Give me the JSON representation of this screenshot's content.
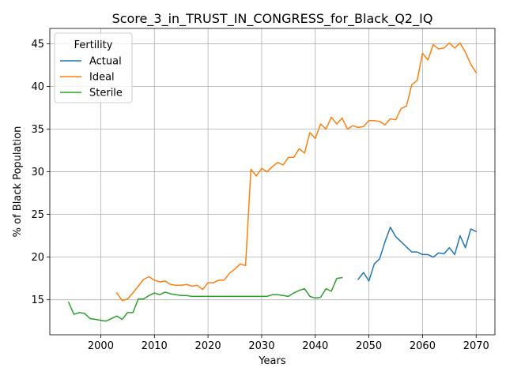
{
  "chart_data": {
    "type": "line",
    "title": "Score_3_in_TRUST_IN_CONGRESS_for_Black_Q2_IQ",
    "xlabel": "Years",
    "ylabel": "% of Black Population",
    "xlim": [
      1990.5,
      2073.5
    ],
    "ylim": [
      10.9,
      46.8
    ],
    "xticks": [
      2000,
      2010,
      2020,
      2030,
      2040,
      2050,
      2060,
      2070
    ],
    "yticks": [
      15,
      20,
      25,
      30,
      35,
      40,
      45
    ],
    "grid": true,
    "legend": {
      "title": "Fertility",
      "placement": "top-left"
    },
    "series": [
      {
        "name": "Actual",
        "color": "#1f77b4",
        "x": [
          2048,
          2049,
          2050,
          2051,
          2052,
          2053,
          2054,
          2055,
          2056,
          2057,
          2058,
          2059,
          2060,
          2061,
          2062,
          2063,
          2064,
          2065,
          2066,
          2067,
          2068,
          2069,
          2070
        ],
        "y": [
          17.4,
          18.2,
          17.2,
          19.2,
          19.8,
          21.8,
          23.5,
          22.4,
          21.8,
          21.2,
          20.6,
          20.6,
          20.3,
          20.3,
          20.0,
          20.5,
          20.4,
          21.1,
          20.3,
          22.5,
          21.1,
          23.3,
          23.0
        ]
      },
      {
        "name": "Ideal",
        "color": "#ff7f0e",
        "x": [
          2003,
          2004,
          2005,
          2006,
          2007,
          2008,
          2009,
          2010,
          2011,
          2012,
          2013,
          2014,
          2015,
          2016,
          2017,
          2018,
          2019,
          2020,
          2021,
          2022,
          2023,
          2024,
          2025,
          2026,
          2027,
          2028,
          2029,
          2030,
          2031,
          2032,
          2033,
          2034,
          2035,
          2036,
          2037,
          2038,
          2039,
          2040,
          2041,
          2042,
          2043,
          2044,
          2045,
          2046,
          2047,
          2048,
          2049,
          2050,
          2051,
          2052,
          2053,
          2054,
          2055,
          2056,
          2057,
          2058,
          2059,
          2060,
          2061,
          2062,
          2063,
          2064,
          2065,
          2066,
          2067,
          2068,
          2069,
          2070
        ],
        "y": [
          15.8,
          14.9,
          15.1,
          15.8,
          16.6,
          17.4,
          17.7,
          17.3,
          17.1,
          17.2,
          16.8,
          16.7,
          16.7,
          16.8,
          16.6,
          16.7,
          16.2,
          17.0,
          17.0,
          17.3,
          17.3,
          18.1,
          18.6,
          19.2,
          19.0,
          30.3,
          29.5,
          30.4,
          30.0,
          30.6,
          31.1,
          30.8,
          31.7,
          31.7,
          32.7,
          32.2,
          34.6,
          33.9,
          35.6,
          35.0,
          36.4,
          35.6,
          36.3,
          35.0,
          35.4,
          35.2,
          35.3,
          36.0,
          36.0,
          35.9,
          35.5,
          36.2,
          36.1,
          37.4,
          37.7,
          40.2,
          40.7,
          43.9,
          43.1,
          44.9,
          44.4,
          44.5,
          45.1,
          44.5,
          45.1,
          44.0,
          42.6,
          41.6
        ]
      },
      {
        "name": "Sterile",
        "color": "#2ca02c",
        "x": [
          1994,
          1995,
          1996,
          1997,
          1998,
          1999,
          2000,
          2001,
          2002,
          2003,
          2004,
          2005,
          2006,
          2007,
          2008,
          2009,
          2010,
          2011,
          2012,
          2013,
          2014,
          2015,
          2016,
          2017,
          2018,
          2019,
          2020,
          2021,
          2022,
          2023,
          2024,
          2025,
          2026,
          2027,
          2028,
          2029,
          2030,
          2031,
          2032,
          2033,
          2034,
          2035,
          2036,
          2037,
          2038,
          2039,
          2040,
          2041,
          2042,
          2043,
          2044,
          2045
        ],
        "y": [
          14.7,
          13.3,
          13.5,
          13.4,
          12.8,
          12.7,
          12.6,
          12.5,
          12.8,
          13.1,
          12.7,
          13.5,
          13.5,
          15.1,
          15.1,
          15.5,
          15.8,
          15.6,
          15.9,
          15.7,
          15.6,
          15.5,
          15.5,
          15.4,
          15.4,
          15.4,
          15.4,
          15.4,
          15.4,
          15.4,
          15.4,
          15.4,
          15.4,
          15.4,
          15.4,
          15.4,
          15.4,
          15.4,
          15.6,
          15.6,
          15.5,
          15.4,
          15.8,
          16.1,
          16.3,
          15.4,
          15.2,
          15.3,
          16.3,
          16.0,
          17.5,
          17.6
        ]
      }
    ]
  }
}
